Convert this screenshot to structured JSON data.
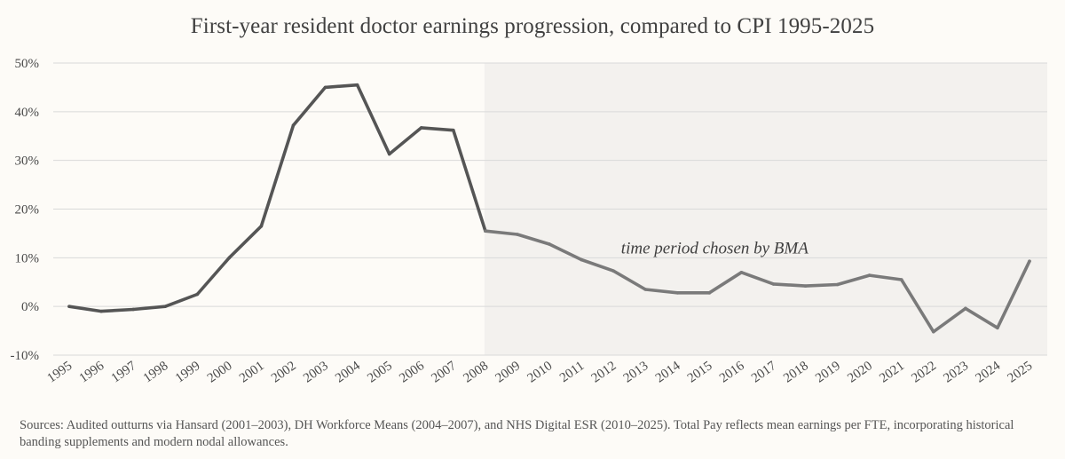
{
  "colors": {
    "background": "#fdfbf7",
    "shaded_region": "#f3f1ee",
    "line_before": "#555555",
    "line_after": "#7a7a7a",
    "grid": "#d9d9d9"
  },
  "chart_data": {
    "type": "line",
    "title": "First-year resident doctor earnings progression, compared to CPI 1995-2025",
    "xlabel": "",
    "ylabel": "",
    "x": [
      "1995",
      "1996",
      "1997",
      "1998",
      "1999",
      "2000",
      "2001",
      "2002",
      "2003",
      "2004",
      "2005",
      "2006",
      "2007",
      "2008",
      "2009",
      "2010",
      "2011",
      "2012",
      "2013",
      "2014",
      "2015",
      "2016",
      "2017",
      "2018",
      "2019",
      "2020",
      "2021",
      "2022",
      "2023",
      "2024",
      "2025"
    ],
    "series": [
      {
        "values": [
          0.0,
          -1.0,
          -0.6,
          0.0,
          2.5,
          10.0,
          16.5,
          37.2,
          45.0,
          45.5,
          31.3,
          36.7,
          36.2,
          15.5,
          14.8,
          12.8,
          9.6,
          7.3,
          3.5,
          2.8,
          2.8,
          7.0,
          4.6,
          4.2,
          4.5,
          6.4,
          5.5,
          -5.2,
          -0.4,
          -4.4,
          9.3
        ]
      }
    ],
    "y_tick_labels": [
      "50%",
      "40%",
      "30%",
      "20%",
      "10%",
      "0%",
      "-10%"
    ],
    "y_tick_values": [
      50,
      40,
      30,
      20,
      10,
      0,
      -10
    ],
    "ylim": [
      -10,
      50
    ],
    "grid": true,
    "legend": "none",
    "shaded_region": {
      "from": "2008",
      "to": "2025"
    },
    "annotation": {
      "text": "time period chosen by BMA",
      "x": "2015",
      "y": 12.5
    }
  },
  "footer": {
    "sources": "Sources:  Audited outturns via Hansard (2001–2003), DH Workforce Means (2004–2007), and NHS Digital ESR (2010–2025). Total Pay reflects mean earnings per FTE, incorporating historical banding supplements and modern nodal allowances."
  }
}
